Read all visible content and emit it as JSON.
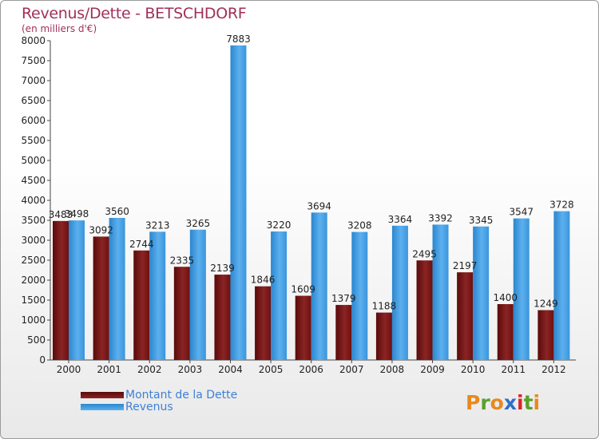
{
  "chart_data": {
    "type": "bar",
    "title": "Revenus/Dette - BETSCHDORF",
    "subtitle": "(en milliers d'€)",
    "categories": [
      "2000",
      "2001",
      "2002",
      "2003",
      "2004",
      "2005",
      "2006",
      "2007",
      "2008",
      "2009",
      "2010",
      "2011",
      "2012"
    ],
    "series": [
      {
        "name": "Montant de la Dette",
        "color": "#6e1010",
        "values": [
          3483,
          3092,
          2744,
          2335,
          2139,
          1846,
          1609,
          1379,
          1188,
          2495,
          2197,
          1400,
          1249
        ]
      },
      {
        "name": "Revenus",
        "color": "#3a95dc",
        "values": [
          3498,
          3560,
          3213,
          3265,
          7883,
          3220,
          3694,
          3208,
          3364,
          3392,
          3345,
          3547,
          3728
        ]
      }
    ],
    "ylim": [
      0,
      8000
    ],
    "yticks": [
      0,
      500,
      1000,
      1500,
      2000,
      2500,
      3000,
      3500,
      4000,
      4500,
      5000,
      5500,
      6000,
      6500,
      7000,
      7500,
      8000
    ],
    "grid": false,
    "legend_position": "bottom-left"
  },
  "logo": {
    "letters": [
      "P",
      "r",
      "o",
      "x",
      "i",
      "t",
      "i"
    ],
    "colors": [
      "#e8891e",
      "#5aa02c",
      "#e8891e",
      "#2f6fc7",
      "#d8262a",
      "#5aa02c",
      "#e8891e"
    ]
  }
}
